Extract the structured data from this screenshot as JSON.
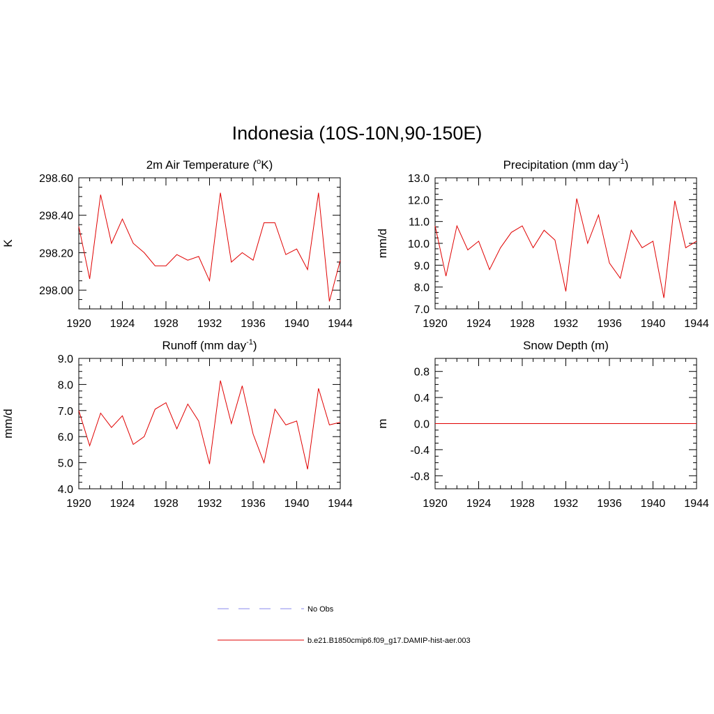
{
  "title": "Indonesia (10S-10N,90-150E)",
  "colors": {
    "model": "#e00000",
    "obs": "#8888ee"
  },
  "legend": {
    "obs_label": "No Obs",
    "model_label": "b.e21.B1850cmip6.f09_g17.DAMIP-hist-aer.003"
  },
  "chart_data": [
    {
      "type": "line",
      "title_main": "2m Air Temperature (",
      "title_sup": "o",
      "title_rest": "K)",
      "ylabel": "K",
      "xlim": [
        1920,
        1944
      ],
      "ylim": [
        297.9,
        298.6
      ],
      "yticks": [
        298.0,
        298.2,
        298.4,
        298.6
      ],
      "ytick_labels": [
        "298.00",
        "298.20",
        "298.40",
        "298.60"
      ],
      "yminor": 0.05,
      "xticks": [
        1920,
        1924,
        1928,
        1932,
        1936,
        1940,
        1944
      ],
      "xtick_labels": [
        "1920",
        "1924",
        "1928",
        "1932",
        "1936",
        "1940",
        "1944"
      ],
      "x": [
        1920,
        1921,
        1922,
        1923,
        1924,
        1925,
        1926,
        1927,
        1928,
        1929,
        1930,
        1931,
        1932,
        1933,
        1934,
        1935,
        1936,
        1937,
        1938,
        1939,
        1940,
        1941,
        1942,
        1943,
        1944
      ],
      "series": [
        {
          "values": [
            298.34,
            298.06,
            298.51,
            298.25,
            298.38,
            298.25,
            298.2,
            298.13,
            298.13,
            298.19,
            298.16,
            298.18,
            298.05,
            298.52,
            298.15,
            298.2,
            298.16,
            298.36,
            298.36,
            298.19,
            298.22,
            298.11,
            298.52,
            297.94,
            298.16
          ]
        }
      ]
    },
    {
      "type": "line",
      "title_main": "Precipitation (mm day",
      "title_sup": "-1",
      "title_rest": ")",
      "ylabel": "mm/d",
      "xlim": [
        1920,
        1944
      ],
      "ylim": [
        7.0,
        13.0
      ],
      "yticks": [
        7.0,
        8.0,
        9.0,
        10.0,
        11.0,
        12.0,
        13.0
      ],
      "ytick_labels": [
        "7.0",
        "8.0",
        "9.0",
        "10.0",
        "11.0",
        "12.0",
        "13.0"
      ],
      "yminor": 0.25,
      "xticks": [
        1920,
        1924,
        1928,
        1932,
        1936,
        1940,
        1944
      ],
      "xtick_labels": [
        "1920",
        "1924",
        "1928",
        "1932",
        "1936",
        "1940",
        "1944"
      ],
      "x": [
        1920,
        1921,
        1922,
        1923,
        1924,
        1925,
        1926,
        1927,
        1928,
        1929,
        1930,
        1931,
        1932,
        1933,
        1934,
        1935,
        1936,
        1937,
        1938,
        1939,
        1940,
        1941,
        1942,
        1943,
        1944
      ],
      "series": [
        {
          "values": [
            10.8,
            8.5,
            10.8,
            9.7,
            10.1,
            8.8,
            9.8,
            10.5,
            10.8,
            9.8,
            10.6,
            10.15,
            7.8,
            12.05,
            10.0,
            11.3,
            9.1,
            8.4,
            10.6,
            9.8,
            10.1,
            7.5,
            11.95,
            9.8,
            10.1
          ]
        }
      ]
    },
    {
      "type": "line",
      "title_main": "Runoff (mm day",
      "title_sup": "-1",
      "title_rest": ")",
      "ylabel": "mm/d",
      "xlim": [
        1920,
        1944
      ],
      "ylim": [
        4.0,
        9.0
      ],
      "yticks": [
        4.0,
        5.0,
        6.0,
        7.0,
        8.0,
        9.0
      ],
      "ytick_labels": [
        "4.0",
        "5.0",
        "6.0",
        "7.0",
        "8.0",
        "9.0"
      ],
      "yminor": 0.25,
      "xticks": [
        1920,
        1924,
        1928,
        1932,
        1936,
        1940,
        1944
      ],
      "xtick_labels": [
        "1920",
        "1924",
        "1928",
        "1932",
        "1936",
        "1940",
        "1944"
      ],
      "x": [
        1920,
        1921,
        1922,
        1923,
        1924,
        1925,
        1926,
        1927,
        1928,
        1929,
        1930,
        1931,
        1932,
        1933,
        1934,
        1935,
        1936,
        1937,
        1938,
        1939,
        1940,
        1941,
        1942,
        1943,
        1944
      ],
      "series": [
        {
          "values": [
            7.0,
            5.65,
            6.9,
            6.35,
            6.8,
            5.7,
            6.0,
            7.05,
            7.3,
            6.3,
            7.25,
            6.6,
            4.95,
            8.15,
            6.5,
            7.95,
            6.1,
            5.0,
            7.05,
            6.45,
            6.6,
            4.75,
            7.85,
            6.45,
            6.55
          ]
        }
      ]
    },
    {
      "type": "line",
      "title_main": "Snow Depth (m)",
      "title_sup": "",
      "title_rest": "",
      "ylabel": "m",
      "xlim": [
        1920,
        1944
      ],
      "ylim": [
        -1.0,
        1.0
      ],
      "yticks": [
        -0.8,
        -0.4,
        0.0,
        0.4,
        0.8
      ],
      "ytick_labels": [
        "-0.8",
        "-0.4",
        "0.0",
        "0.4",
        "0.8"
      ],
      "yminor": 0.1,
      "xticks": [
        1920,
        1924,
        1928,
        1932,
        1936,
        1940,
        1944
      ],
      "xtick_labels": [
        "1920",
        "1924",
        "1928",
        "1932",
        "1936",
        "1940",
        "1944"
      ],
      "x": [
        1920,
        1944
      ],
      "series": [
        {
          "values": [
            0.0,
            0.0
          ]
        }
      ]
    }
  ]
}
